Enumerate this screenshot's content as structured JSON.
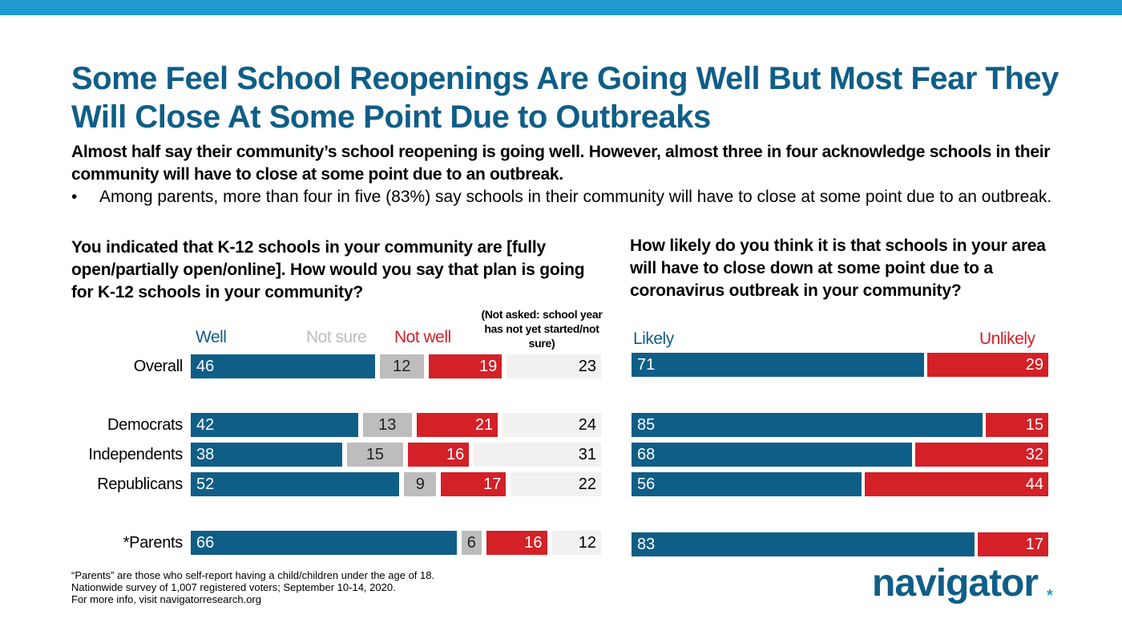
{
  "header": {
    "title": "Some Feel School Reopenings Are Going Well But Most Fear They Will Close At Some Point Due to Outbreaks",
    "subtitle": "Almost half say their community’s school reopening is going well. However, almost three in four acknowledge schools in their community will have to close at some point due to an outbreak.",
    "bullet": "Among parents, more than four in five (83%) say schools in their community will have to close at some point due to an outbreak.",
    "bullet_symbol": "•"
  },
  "colors": {
    "brand_blue": "#0f5e87",
    "accent_blue": "#1f9bcf",
    "red": "#d42027",
    "grey": "#bdbdbd",
    "light_grey": "#f1f1f1"
  },
  "chart_data": [
    {
      "type": "bar",
      "orientation": "horizontal-stacked",
      "title": "You indicated that K-12 schools in your community are [fully open/partially open/online]. How would you say that plan is going for K-12 schools in your community?",
      "categories": [
        "Overall",
        "Democrats",
        "Independents",
        "Republicans",
        "*Parents"
      ],
      "series": [
        {
          "name": "Well",
          "color": "#0f5e87",
          "values": [
            46,
            42,
            38,
            52,
            66
          ]
        },
        {
          "name": "Not sure",
          "color": "#bdbdbd",
          "values": [
            12,
            13,
            15,
            9,
            6
          ]
        },
        {
          "name": "Not well",
          "color": "#d42027",
          "values": [
            19,
            21,
            16,
            17,
            16
          ]
        },
        {
          "name": "(Not asked: school year has not yet started/not sure)",
          "color": "#f1f1f1",
          "values": [
            23,
            24,
            31,
            22,
            12
          ]
        }
      ],
      "xlim": [
        0,
        100
      ],
      "legend": "top"
    },
    {
      "type": "bar",
      "orientation": "horizontal-stacked",
      "title": "How likely do you think it is that schools in your area will have to close down at some point due to a coronavirus outbreak in your community?",
      "categories": [
        "Overall",
        "Democrats",
        "Independents",
        "Republicans",
        "*Parents"
      ],
      "series": [
        {
          "name": "Likely",
          "color": "#0f5e87",
          "values": [
            71,
            85,
            68,
            56,
            83
          ]
        },
        {
          "name": "Unlikely",
          "color": "#d42027",
          "values": [
            29,
            15,
            32,
            44,
            17
          ]
        }
      ],
      "xlim": [
        0,
        100
      ],
      "legend": "top"
    }
  ],
  "footnote": [
    "“Parents” are those who self-report having a child/children under the age of 18.",
    "Nationwide survey of 1,007 registered voters; September 10-14, 2020.",
    "For more info, visit navigatorresearch.org"
  ],
  "logo": {
    "text": "navigator",
    "mark": "*"
  }
}
